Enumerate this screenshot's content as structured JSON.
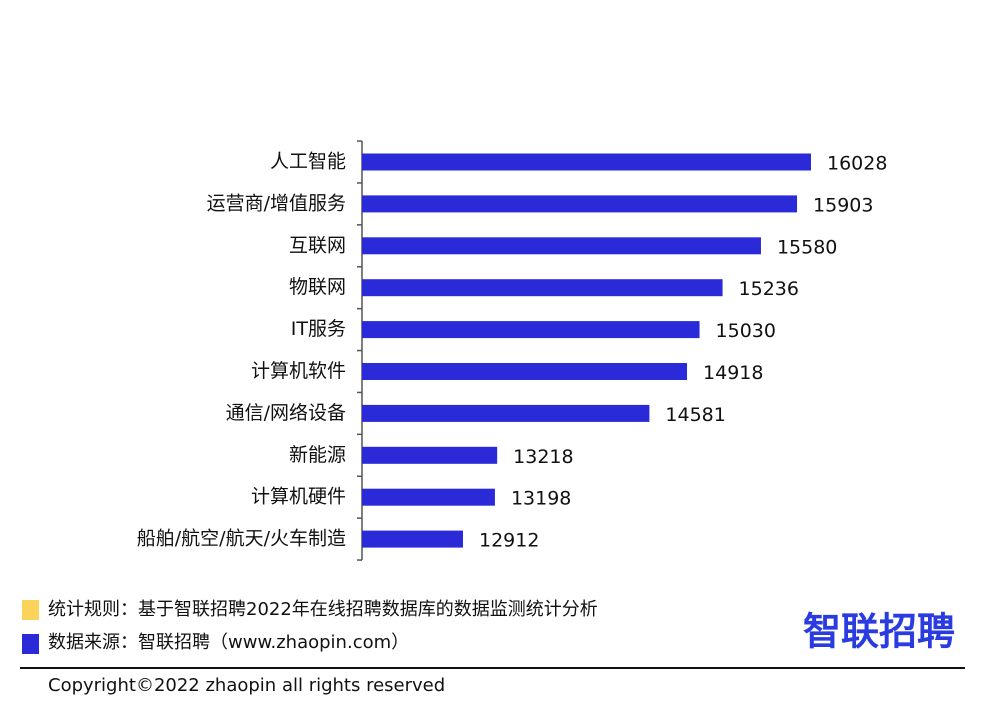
{
  "chart_data": {
    "type": "bar",
    "orientation": "horizontal",
    "categories": [
      "人工智能",
      "运营商/增值服务",
      "互联网",
      "物联网",
      "IT服务",
      "计算机软件",
      "通信/网络设备",
      "新能源",
      "计算机硬件",
      "船舶/航空/航天/火车制造"
    ],
    "values": [
      16028,
      15903,
      15580,
      15236,
      15030,
      14918,
      14581,
      13218,
      13198,
      12912
    ],
    "color": "#2a2ad8"
  },
  "footer": {
    "rule": "统计规则：基于智联招聘2022年在线招聘数据库的数据监测统计分析",
    "source": "数据来源：智联招聘（www.zhaopin.com）",
    "logo": "智联招聘",
    "copyright": "Copyright©2022 zhaopin all rights reserved"
  }
}
